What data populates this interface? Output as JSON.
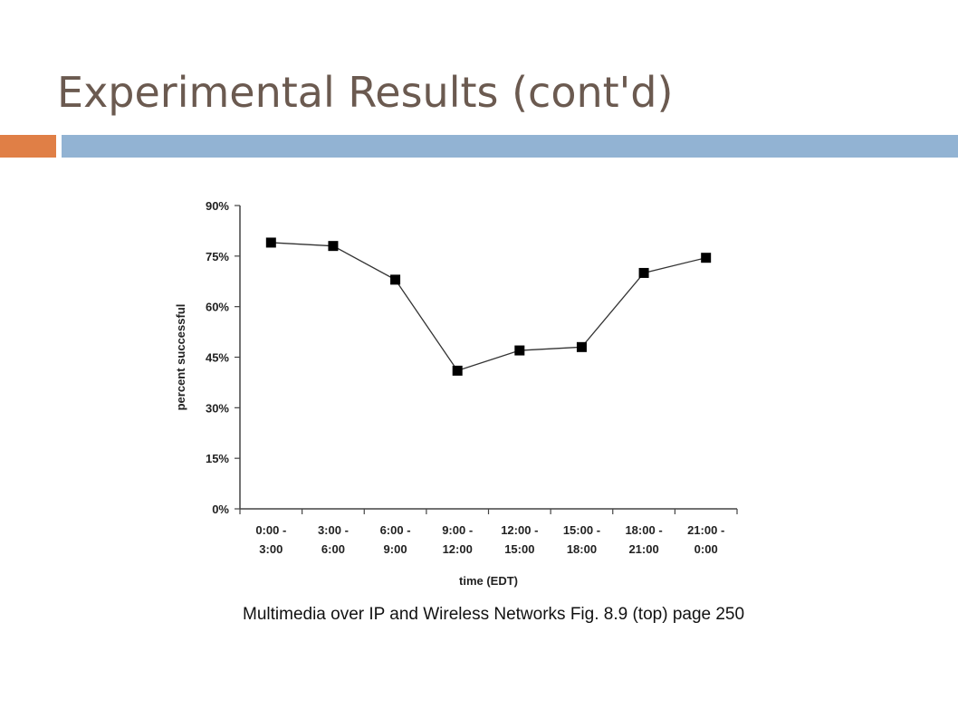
{
  "slide": {
    "title": "Experimental Results (cont'd)",
    "caption": "Multimedia over IP and Wireless Networks Fig. 8.9 (top) page 250"
  },
  "colors": {
    "title": "#6b5a50",
    "accent_left": "#e07f46",
    "accent_right": "#92b3d3",
    "line": "#333333",
    "marker": "#000000",
    "axis": "#444444"
  },
  "chart_data": {
    "type": "line",
    "title": "",
    "xlabel": "time (EDT)",
    "ylabel": "percent successful",
    "categories": [
      [
        "0:00 -",
        "3:00"
      ],
      [
        "3:00 -",
        "6:00"
      ],
      [
        "6:00 -",
        "9:00"
      ],
      [
        "9:00 -",
        "12:00"
      ],
      [
        "12:00 -",
        "15:00"
      ],
      [
        "15:00 -",
        "18:00"
      ],
      [
        "18:00 -",
        "21:00"
      ],
      [
        "21:00 -",
        "0:00"
      ]
    ],
    "series": [
      {
        "values": [
          79,
          78,
          68,
          41,
          47,
          48,
          70,
          74.5
        ]
      }
    ],
    "ylim": [
      0,
      90
    ],
    "yticks": [
      0,
      15,
      30,
      45,
      60,
      75,
      90
    ],
    "ytick_labels": [
      "0%",
      "15%",
      "30%",
      "45%",
      "60%",
      "75%",
      "90%"
    ],
    "grid": false,
    "marker": "square"
  }
}
